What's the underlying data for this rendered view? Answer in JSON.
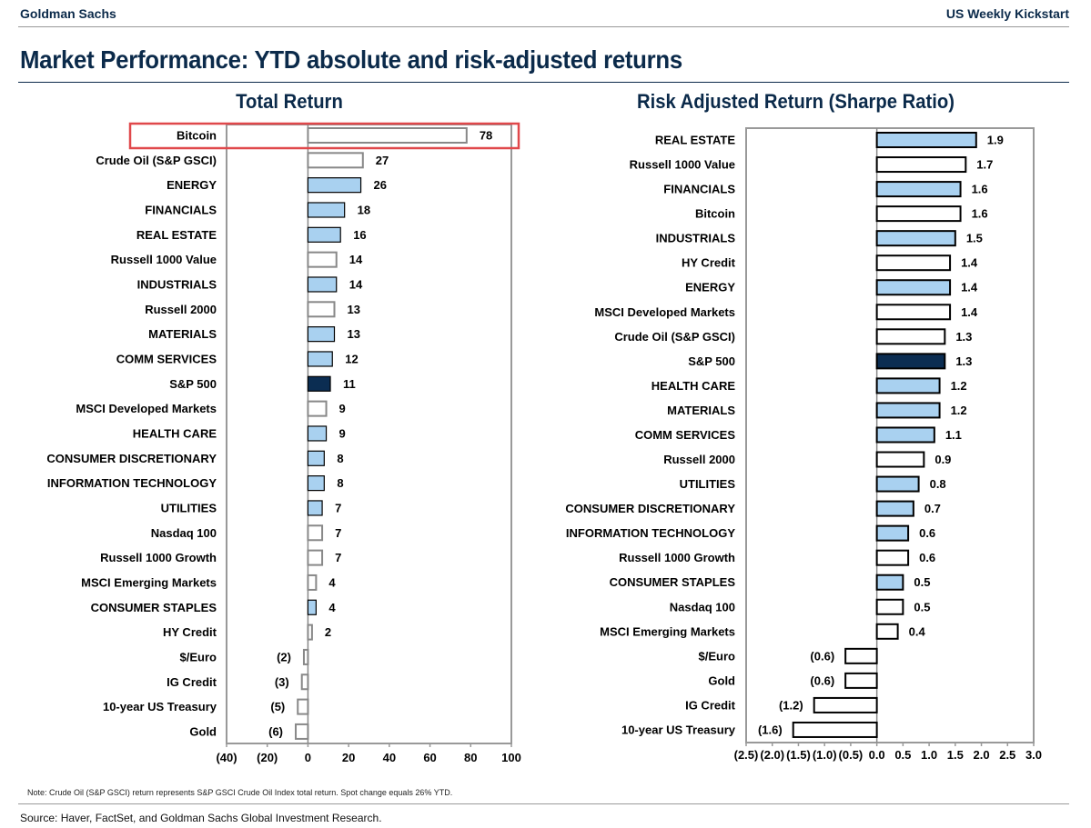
{
  "header": {
    "brand": "Goldman Sachs",
    "publication": "US Weekly Kickstart"
  },
  "title": "Market Performance: YTD absolute and risk-adjusted returns",
  "colors": {
    "sector": "#a9d1f0",
    "sp500": "#0b2d52",
    "other": "#ffffff",
    "navy": "#0b2a4a",
    "highlight": "#e0484b"
  },
  "chart_data": [
    {
      "type": "bar",
      "orientation": "horizontal",
      "title": "Total Return",
      "xlim": [
        -40,
        100
      ],
      "ticks": [
        -40,
        -20,
        0,
        20,
        40,
        60,
        80,
        100
      ],
      "tick_labels": [
        "(40)",
        "(20)",
        "0",
        "20",
        "40",
        "60",
        "80",
        "100"
      ],
      "highlighted": "Bitcoin",
      "categories": [
        "Bitcoin",
        "Crude Oil (S&P GSCI)",
        "ENERGY",
        "FINANCIALS",
        "REAL ESTATE",
        "Russell 1000 Value",
        "INDUSTRIALS",
        "Russell 2000",
        "MATERIALS",
        "COMM SERVICES",
        "S&P 500",
        "MSCI Developed Markets",
        "HEALTH CARE",
        "CONSUMER DISCRETIONARY",
        "INFORMATION TECHNOLOGY",
        "UTILITIES",
        "Nasdaq 100",
        "Russell 1000 Growth",
        "MSCI Emerging Markets",
        "CONSUMER STAPLES",
        "HY Credit",
        "$/Euro",
        "IG Credit",
        "10-year US Treasury",
        "Gold"
      ],
      "values": [
        78,
        27,
        26,
        18,
        16,
        14,
        14,
        13,
        13,
        12,
        11,
        9,
        9,
        8,
        8,
        7,
        7,
        7,
        4,
        4,
        2,
        -2,
        -3,
        -5,
        -6
      ],
      "labels": [
        "78",
        "27",
        "26",
        "18",
        "16",
        "14",
        "14",
        "13",
        "13",
        "12",
        "11",
        "9",
        "9",
        "8",
        "8",
        "7",
        "7",
        "7",
        "4",
        "4",
        "2",
        "(2)",
        "(3)",
        "(5)",
        "(6)"
      ],
      "kinds": [
        "other",
        "other",
        "sector",
        "sector",
        "sector",
        "other",
        "sector",
        "other",
        "sector",
        "sector",
        "sp500",
        "other",
        "sector",
        "sector",
        "sector",
        "sector",
        "other",
        "other",
        "other",
        "sector",
        "other",
        "other",
        "other",
        "other",
        "other"
      ]
    },
    {
      "type": "bar",
      "orientation": "horizontal",
      "title": "Risk Adjusted Return (Sharpe Ratio)",
      "xlim": [
        -2.5,
        3.0
      ],
      "ticks": [
        -2.5,
        -2.0,
        -1.5,
        -1.0,
        -0.5,
        0,
        0.5,
        1.0,
        1.5,
        2.0,
        2.5,
        3.0
      ],
      "tick_labels": [
        "(2.5)",
        "(2.0)",
        "(1.5)",
        "(1.0)",
        "(0.5)",
        "0.0",
        "0.5",
        "1.0",
        "1.5",
        "2.0",
        "2.5",
        "3.0"
      ],
      "categories": [
        "REAL ESTATE",
        "Russell 1000 Value",
        "FINANCIALS",
        "Bitcoin",
        "INDUSTRIALS",
        "HY Credit",
        "ENERGY",
        "MSCI Developed Markets",
        "Crude Oil (S&P GSCI)",
        "S&P 500",
        "HEALTH CARE",
        "MATERIALS",
        "COMM SERVICES",
        "Russell 2000",
        "UTILITIES",
        "CONSUMER DISCRETIONARY",
        "INFORMATION TECHNOLOGY",
        "Russell 1000 Growth",
        "CONSUMER STAPLES",
        "Nasdaq 100",
        "MSCI Emerging Markets",
        "$/Euro",
        "Gold",
        "IG Credit",
        "10-year US Treasury"
      ],
      "values": [
        1.9,
        1.7,
        1.6,
        1.6,
        1.5,
        1.4,
        1.4,
        1.4,
        1.3,
        1.3,
        1.2,
        1.2,
        1.1,
        0.9,
        0.8,
        0.7,
        0.6,
        0.6,
        0.5,
        0.5,
        0.4,
        -0.6,
        -0.6,
        -1.2,
        -1.6
      ],
      "labels": [
        "1.9",
        "1.7",
        "1.6",
        "1.6",
        "1.5",
        "1.4",
        "1.4",
        "1.4",
        "1.3",
        "1.3",
        "1.2",
        "1.2",
        "1.1",
        "0.9",
        "0.8",
        "0.7",
        "0.6",
        "0.6",
        "0.5",
        "0.5",
        "0.4",
        "(0.6)",
        "(0.6)",
        "(1.2)",
        "(1.6)"
      ],
      "kinds": [
        "sector",
        "other",
        "sector",
        "other",
        "sector",
        "other",
        "sector",
        "other",
        "other",
        "sp500",
        "sector",
        "sector",
        "sector",
        "other",
        "sector",
        "sector",
        "sector",
        "other",
        "sector",
        "other",
        "other",
        "other",
        "other",
        "other",
        "other"
      ]
    }
  ],
  "note": "Note: Crude Oil (S&P GSCI) return represents S&P GSCI Crude Oil Index total return. Spot change equals 26% YTD.",
  "source": "Source: Haver, FactSet, and Goldman Sachs Global Investment Research."
}
